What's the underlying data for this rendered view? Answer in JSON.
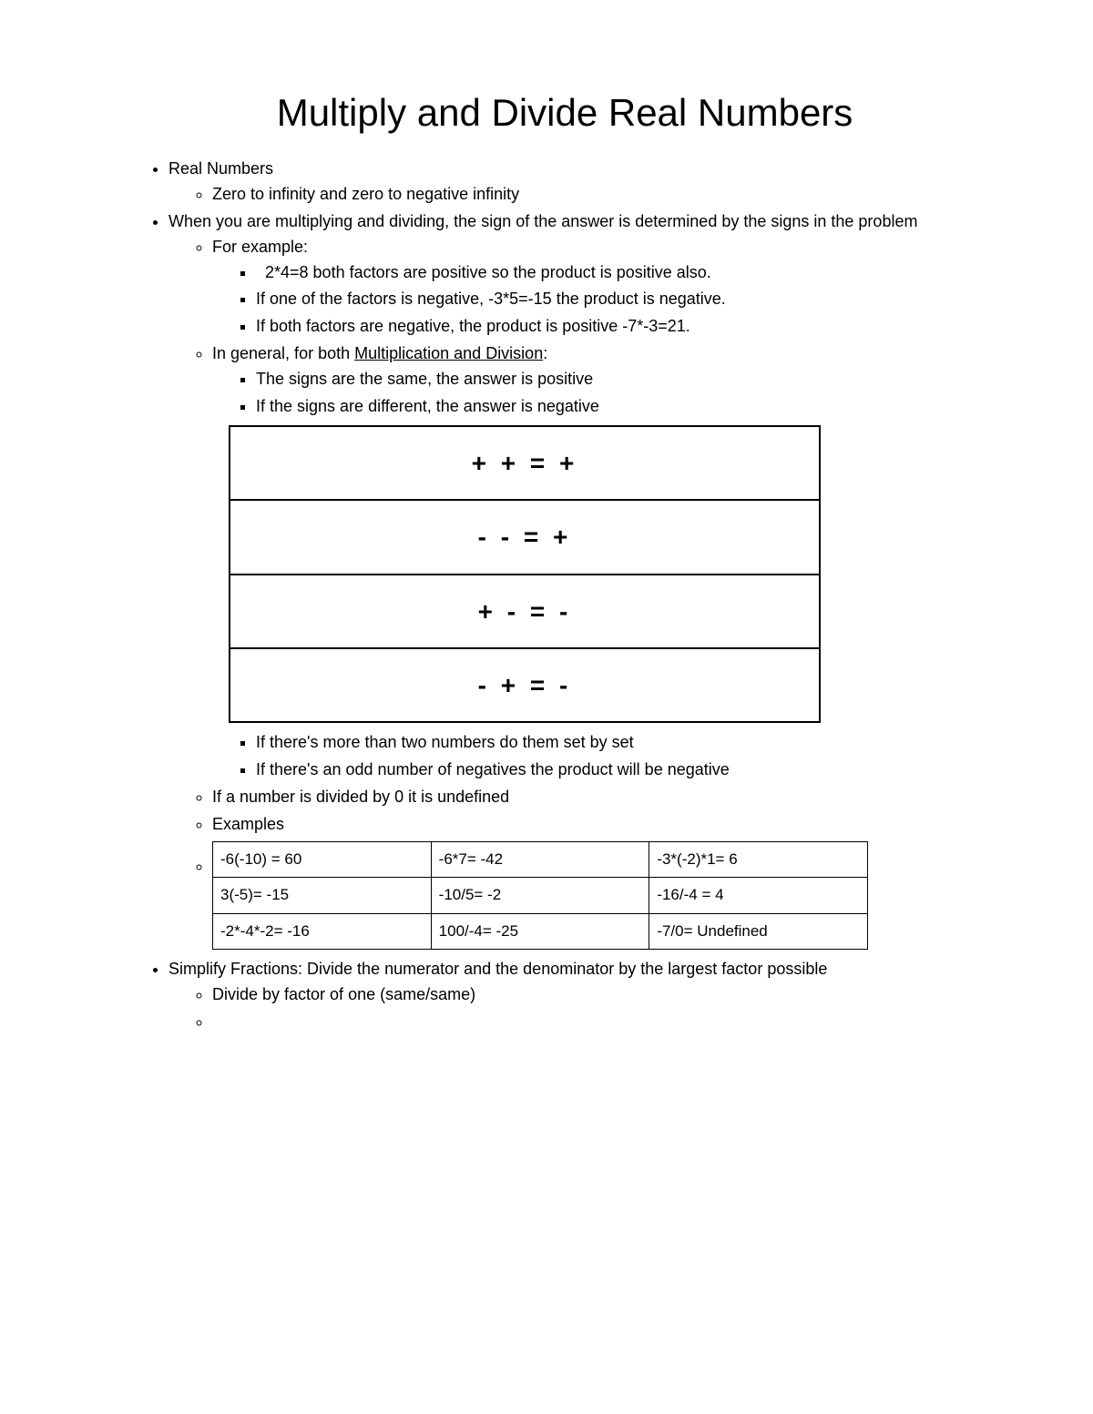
{
  "title": "Multiply and Divide Real Numbers",
  "bullets": {
    "b1": "Real Numbers",
    "b1_1": "Zero to infinity and zero to negative infinity",
    "b2": "When you are multiplying and dividing, the sign of the answer is determined by the signs in the problem",
    "b2_1": "For example:",
    "b2_1_1": "2*4=8 both factors are positive so the product is positive also.",
    "b2_1_2": "If one of the factors is negative, -3*5=-15 the product is negative.",
    "b2_1_3": "If both factors are negative, the product is positive -7*-3=21.",
    "b2_2_prefix": "In general, for both ",
    "b2_2_underline": "Multiplication and Division",
    "b2_2_suffix": ":",
    "b2_2_1": "The signs are the same, the answer is positive",
    "b2_2_2": "If the signs are different, the answer is negative",
    "b2_2_4": "If there's more than two numbers do them set by set",
    "b2_2_5": "If there's an odd number of negatives the product will be negative",
    "b2_3": "If a number is divided by 0 it is undefined",
    "b2_4": "Examples",
    "b3": "Simplify Fractions: Divide the numerator and the denominator by the largest factor possible",
    "b3_1": "Divide by factor of one (same/same)"
  },
  "sign_table": {
    "rows": [
      "+ + = +",
      "- - = +",
      "+ - = -",
      "- + = -"
    ],
    "border_color": "#000000",
    "font_size": 28,
    "font_weight": "bold",
    "cell_padding": 18
  },
  "examples_table": {
    "rows": [
      [
        "-6(-10) = 60",
        "-6*7= -42",
        "-3*(-2)*1= 6"
      ],
      [
        "3(-5)= -15",
        "-10/5= -2",
        "-16/-4 = 4"
      ],
      [
        "-2*-4*-2= -16",
        "100/-4= -25",
        "-7/0= Undefined"
      ]
    ],
    "border_color": "#000000",
    "font_size": 17
  },
  "styles": {
    "background_color": "#ffffff",
    "text_color": "#000000",
    "font_family": "Arial",
    "title_fontsize": 42,
    "body_fontsize": 18
  }
}
